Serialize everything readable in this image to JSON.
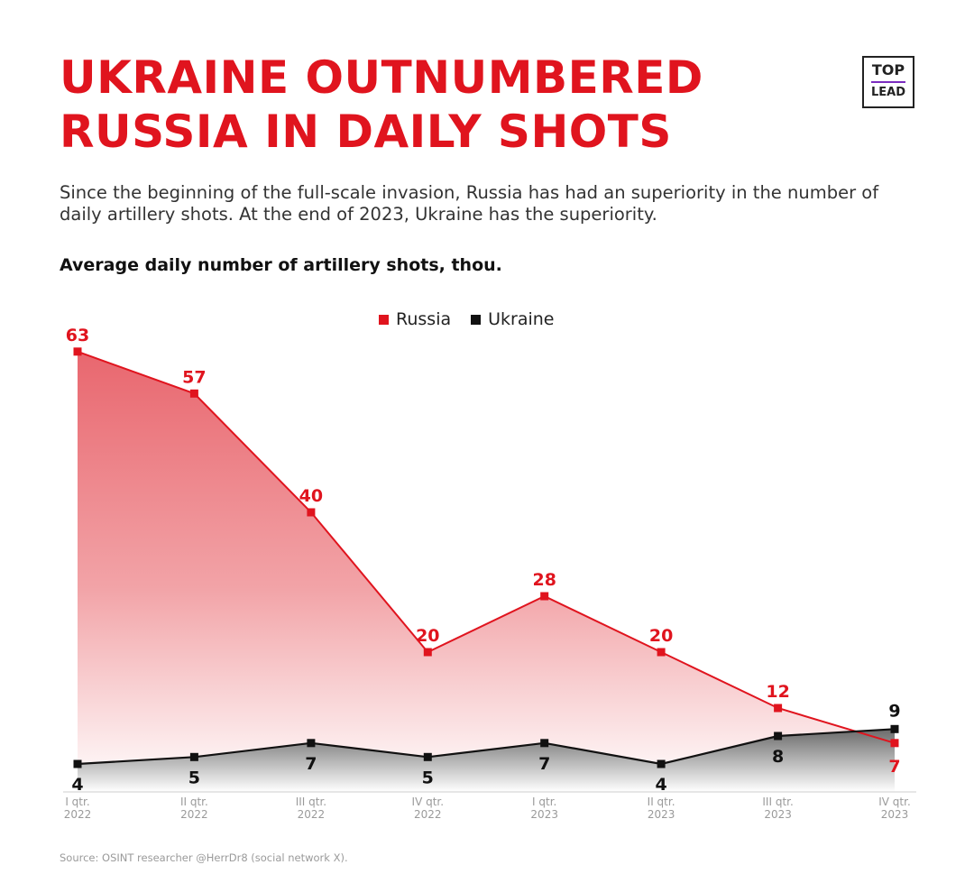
{
  "title_line1": "UKRAINE OUTNUMBERED",
  "title_line2": "RUSSIA IN DAILY SHOTS",
  "logo": {
    "line1": "TOP",
    "line2": "LEAD"
  },
  "subtitle": "Since the beginning of the full-scale invasion, Russia has had an superiority in the number of daily artillery shots. At the end of 2023, Ukraine has the superiority.",
  "chart_heading": "Average daily number of artillery shots, thou.",
  "source": "Source: OSINT researcher @HerrDr8 (social network X).",
  "colors": {
    "russia": "#e0141e",
    "ukraine": "#111111",
    "title": "#e0141e"
  },
  "chart_data": {
    "type": "area",
    "title": "Average daily number of artillery shots, thou.",
    "categories": [
      [
        "I qtr.",
        "2022"
      ],
      [
        "II qtr.",
        "2022"
      ],
      [
        "III qtr.",
        "2022"
      ],
      [
        "IV qtr.",
        "2022"
      ],
      [
        "I qtr.",
        "2023"
      ],
      [
        "II qtr.",
        "2023"
      ],
      [
        "III qtr.",
        "2023"
      ],
      [
        "IV qtr.",
        "2023"
      ]
    ],
    "series": [
      {
        "name": "Russia",
        "values": [
          63,
          57,
          40,
          20,
          28,
          20,
          12,
          7
        ]
      },
      {
        "name": "Ukraine",
        "values": [
          4,
          5,
          7,
          5,
          7,
          4,
          8,
          9
        ]
      }
    ],
    "ylim": [
      0,
      70
    ],
    "legend": "top-center",
    "grid": false,
    "xlabel": "",
    "ylabel": ""
  }
}
